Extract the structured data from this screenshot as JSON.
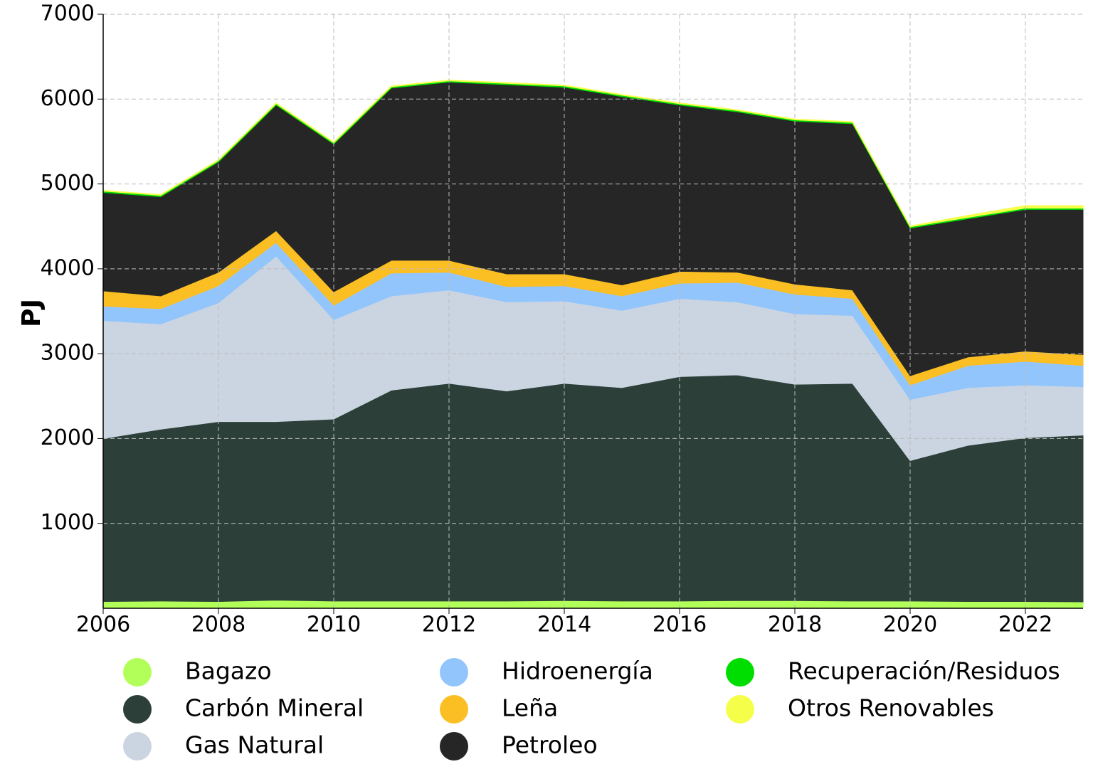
{
  "chart_data": {
    "type": "stacked-area",
    "ylabel": "PJ",
    "x": [
      2006,
      2007,
      2008,
      2009,
      2010,
      2011,
      2012,
      2013,
      2014,
      2015,
      2016,
      2017,
      2018,
      2019,
      2020,
      2021,
      2022,
      2023
    ],
    "xlim": [
      2006,
      2023
    ],
    "xticks": [
      2006,
      2008,
      2010,
      2012,
      2014,
      2016,
      2018,
      2020,
      2022
    ],
    "ylim": [
      0,
      7000
    ],
    "yticks": [
      1000,
      2000,
      3000,
      4000,
      5000,
      6000,
      7000
    ],
    "grid": true,
    "series": [
      {
        "name": "Bagazo",
        "color": "#b2ff59",
        "values": [
          80,
          85,
          80,
          95,
          85,
          85,
          85,
          85,
          90,
          85,
          85,
          90,
          90,
          85,
          85,
          80,
          80,
          75
        ]
      },
      {
        "name": "Carbón Mineral",
        "color": "#2c4039",
        "values": [
          1920,
          2025,
          2120,
          2105,
          2145,
          2485,
          2565,
          2475,
          2560,
          2515,
          2645,
          2660,
          2550,
          2565,
          1655,
          1840,
          1930,
          1965
        ]
      },
      {
        "name": "Gas Natural",
        "color": "#cbd5e1",
        "values": [
          1390,
          1240,
          1400,
          1950,
          1170,
          1110,
          1100,
          1050,
          970,
          910,
          920,
          860,
          830,
          800,
          720,
          680,
          620,
          570
        ]
      },
      {
        "name": "Hidroenergía",
        "color": "#93c5fd",
        "values": [
          170,
          180,
          200,
          160,
          170,
          270,
          210,
          180,
          180,
          170,
          180,
          230,
          230,
          200,
          170,
          260,
          280,
          250
        ]
      },
      {
        "name": "Leña",
        "color": "#fbbf24",
        "values": [
          180,
          150,
          160,
          140,
          160,
          150,
          140,
          150,
          140,
          130,
          140,
          120,
          120,
          100,
          110,
          100,
          120,
          130
        ]
      },
      {
        "name": "Petroleo",
        "color": "#262626",
        "values": [
          1160,
          1170,
          1300,
          1480,
          1740,
          2030,
          2100,
          2230,
          2200,
          2220,
          1960,
          1890,
          1920,
          1960,
          1740,
          1630,
          1670,
          1710
        ]
      },
      {
        "name": "Recuperación/Residuos",
        "color": "#00dd00",
        "values": [
          15,
          15,
          15,
          15,
          15,
          15,
          15,
          15,
          15,
          15,
          15,
          15,
          15,
          15,
          15,
          15,
          15,
          15
        ]
      },
      {
        "name": "Otros Renovables",
        "color": "#f5ff4a",
        "values": [
          10,
          10,
          10,
          10,
          10,
          10,
          10,
          10,
          10,
          10,
          10,
          10,
          10,
          10,
          10,
          25,
          30,
          30
        ]
      }
    ]
  }
}
